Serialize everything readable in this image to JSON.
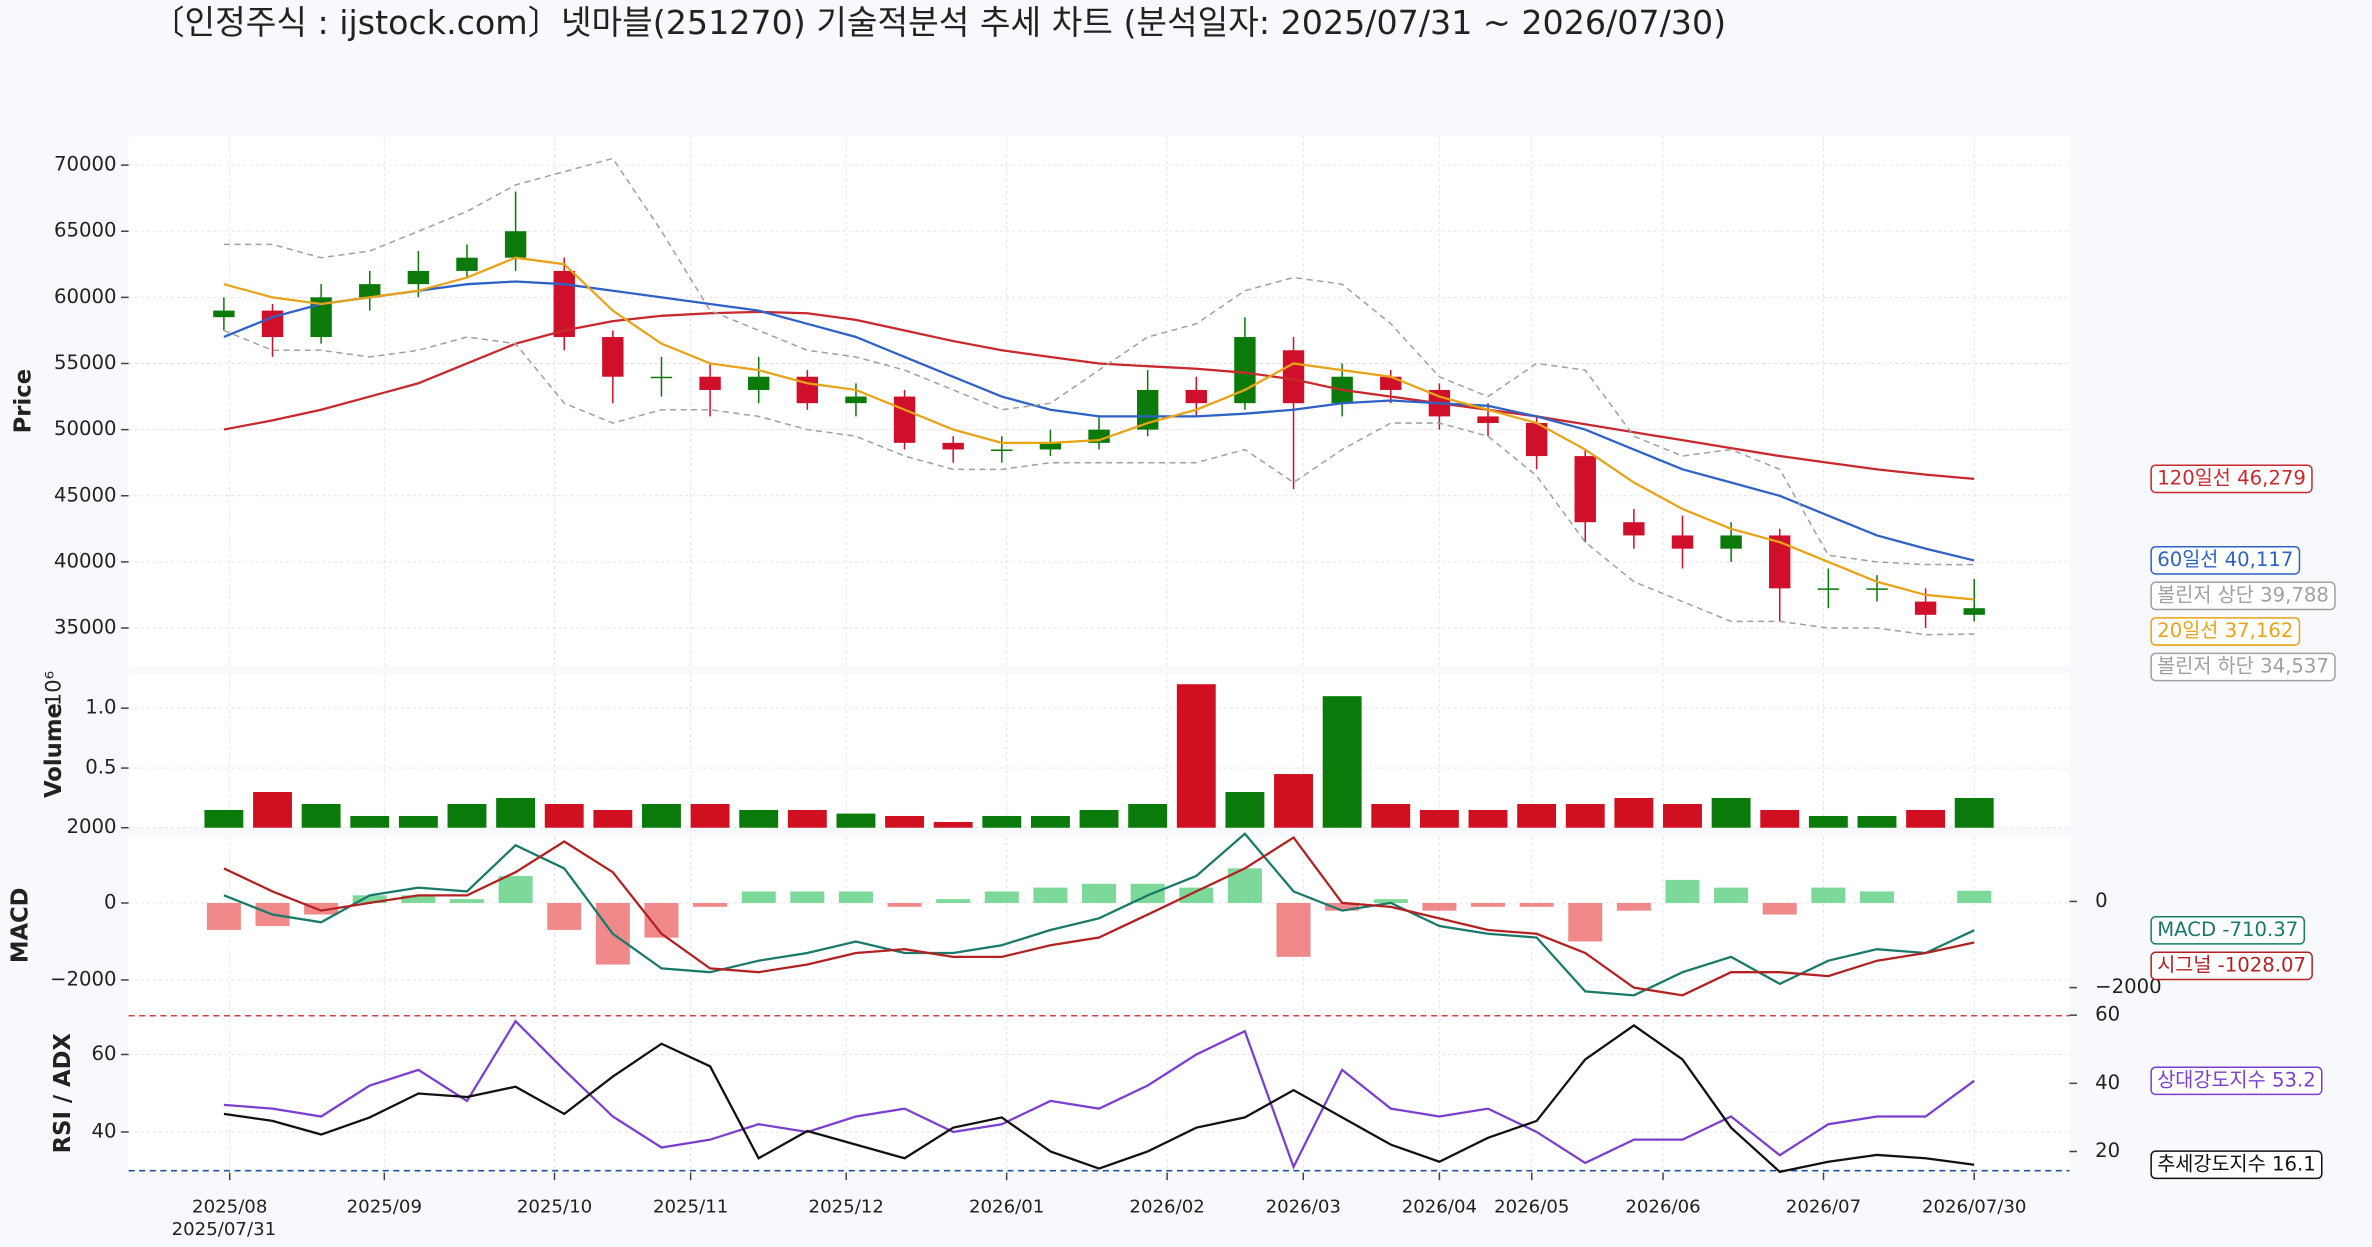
{
  "title": "〔인정주식 : ijstock.com〕넷마블(251270) 기술적분석 추세 차트 (분석일자: 2025/07/31 ~ 2026/07/30)",
  "chart_data": [
    {
      "type": "candlestick",
      "ylabel": "Price",
      "ylim": [
        32140,
        72170
      ],
      "yticks": [
        35000,
        40000,
        45000,
        50000,
        55000,
        60000,
        65000,
        70000
      ],
      "grid": true,
      "up_color": "#0b7a0b",
      "down_color": "#d0102a",
      "open": [
        58500,
        59000,
        57000,
        60000,
        61000,
        62000,
        63000,
        62000,
        57000,
        54000,
        54000,
        53000,
        54000,
        52000,
        52500,
        49000,
        48500,
        48500,
        49000,
        50000,
        53000,
        52000,
        56000,
        52000,
        54000,
        53000,
        51000,
        50500,
        48000,
        43000,
        42000,
        41000,
        42000,
        38000,
        38000,
        37000,
        36000
      ],
      "high": [
        60000,
        59500,
        61000,
        62000,
        63500,
        64000,
        68000,
        63000,
        57500,
        55500,
        55000,
        55500,
        54500,
        53500,
        53000,
        49500,
        49500,
        50000,
        51000,
        54500,
        54000,
        58500,
        57000,
        55000,
        54500,
        53500,
        52000,
        51000,
        48500,
        44000,
        43500,
        43000,
        42500,
        39500,
        39000,
        38000,
        38700
      ],
      "low": [
        57500,
        55500,
        56500,
        59000,
        60000,
        61500,
        62000,
        56000,
        52000,
        52500,
        51000,
        52000,
        51500,
        51000,
        48500,
        47500,
        47500,
        48000,
        48500,
        49500,
        51000,
        51500,
        45500,
        51000,
        52000,
        50000,
        49500,
        47000,
        41500,
        41000,
        39500,
        40000,
        35500,
        36500,
        37000,
        35000,
        35500
      ],
      "close": [
        59000,
        57000,
        60000,
        61000,
        62000,
        63000,
        65000,
        57000,
        54000,
        54000,
        53000,
        54000,
        52000,
        52500,
        49000,
        48500,
        48500,
        49000,
        50000,
        53000,
        52000,
        57000,
        52000,
        54000,
        53000,
        51000,
        50500,
        48000,
        43000,
        42000,
        41000,
        42000,
        38000,
        38000,
        38000,
        36000,
        36500
      ],
      "series": [
        {
          "name": "120일선 46,279",
          "color": "#c8282e",
          "values": [
            50000,
            50700,
            51500,
            52500,
            53500,
            55000,
            56500,
            57500,
            58200,
            58600,
            58800,
            58900,
            58800,
            58300,
            57500,
            56700,
            56000,
            55500,
            55000,
            54800,
            54600,
            54300,
            53800,
            53000,
            52500,
            52000,
            51500,
            51000,
            50400,
            49800,
            49200,
            48600,
            48000,
            47500,
            47000,
            46600,
            46279
          ]
        },
        {
          "name": "60일선 40,117",
          "color": "#2f62c6",
          "values": [
            57000,
            58500,
            59500,
            60000,
            60500,
            61000,
            61200,
            61000,
            60500,
            60000,
            59500,
            59000,
            58000,
            57000,
            55500,
            54000,
            52500,
            51500,
            51000,
            51000,
            51000,
            51200,
            51500,
            52000,
            52200,
            52000,
            51800,
            51000,
            50000,
            48500,
            47000,
            46000,
            45000,
            43500,
            42000,
            41000,
            40117
          ]
        },
        {
          "name": "볼린저 상단 39,788",
          "color": "#a0a0a0",
          "dash": true,
          "values": [
            64000,
            64000,
            63000,
            63500,
            65000,
            66500,
            68500,
            69500,
            70500,
            65000,
            59000,
            57500,
            56000,
            55500,
            54500,
            53000,
            51500,
            52000,
            54500,
            57000,
            58000,
            60500,
            61500,
            61000,
            58000,
            54000,
            52500,
            55000,
            54500,
            49500,
            48000,
            48500,
            47000,
            40500,
            40000,
            39800,
            39788
          ]
        },
        {
          "name": "20일선 37,162",
          "color": "#e8a317",
          "values": [
            61000,
            60000,
            59500,
            60000,
            60500,
            61500,
            63000,
            62500,
            59000,
            56500,
            55000,
            54500,
            53500,
            53000,
            51500,
            50000,
            49000,
            49000,
            49200,
            50500,
            51500,
            53000,
            55000,
            54500,
            54000,
            52500,
            51500,
            50500,
            48500,
            46000,
            44000,
            42500,
            41500,
            40000,
            38500,
            37500,
            37162
          ]
        },
        {
          "name": "볼린저 하단 34,537",
          "color": "#a0a0a0",
          "dash": true,
          "values": [
            57500,
            56000,
            56000,
            55500,
            56000,
            57000,
            56500,
            52000,
            50500,
            51500,
            51500,
            51000,
            50000,
            49500,
            48000,
            47000,
            47000,
            47500,
            47500,
            47500,
            47500,
            48500,
            46000,
            48500,
            50500,
            50500,
            49500,
            46500,
            41500,
            38500,
            37000,
            35500,
            35500,
            35000,
            35000,
            34500,
            34537
          ]
        }
      ]
    },
    {
      "type": "bar",
      "ylabel": "Volume",
      "offset_text": "10⁶",
      "ylim": [
        0.002,
        1.29
      ],
      "yticks": [
        {
          "value": 0.002,
          "label": "2000"
        },
        0.5,
        {
          "value": 1,
          "label": "1.0"
        }
      ],
      "grid": true,
      "up_color": "#0a7a0a",
      "down_color": "#d01020",
      "values": [
        0.15,
        0.3,
        0.2,
        0.1,
        0.1,
        0.2,
        0.25,
        0.2,
        0.15,
        0.2,
        0.2,
        0.15,
        0.15,
        0.12,
        0.1,
        0.05,
        0.1,
        0.1,
        0.15,
        0.2,
        1.2,
        0.3,
        0.45,
        1.1,
        0.2,
        0.15,
        0.15,
        0.2,
        0.2,
        0.25,
        0.2,
        0.25,
        0.15,
        0.1,
        0.1,
        0.15,
        0.25
      ]
    },
    {
      "type": "macd",
      "ylabel": "MACD",
      "ylim": [
        -2880,
        1720
      ],
      "yticks": [
        {
          "value": -2000,
          "label": "−2000"
        },
        0
      ],
      "y2lim": [
        -2607,
        1500
      ],
      "y2ticks": [
        {
          "value": -2000,
          "label": "−2000"
        },
        0
      ],
      "grid": true,
      "histogram": {
        "up_color": "#7dd99a",
        "down_color": "#f08a8a",
        "values": [
          -700,
          -600,
          -300,
          200,
          200,
          100,
          700,
          -700,
          -1600,
          -900,
          -100,
          300,
          300,
          300,
          -100,
          100,
          300,
          400,
          500,
          500,
          400,
          900,
          -1400,
          -200,
          100,
          -200,
          -100,
          -100,
          -1000,
          -200,
          600,
          400,
          -300,
          400,
          300,
          0,
          317.7
        ]
      },
      "series": [
        {
          "name": "MACD -710.37",
          "color": "#1a7a6a",
          "values": [
            200,
            -300,
            -500,
            200,
            400,
            300,
            1500,
            900,
            -800,
            -1700,
            -1800,
            -1500,
            -1300,
            -1000,
            -1300,
            -1300,
            -1100,
            -700,
            -400,
            200,
            700,
            1800,
            300,
            -200,
            0,
            -600,
            -800,
            -900,
            -2300,
            -2400,
            -1800,
            -1400,
            -2100,
            -1500,
            -1200,
            -1300,
            -710.37
          ]
        },
        {
          "name": "시그널 -1028.07",
          "color": "#b22222",
          "values": [
            900,
            300,
            -200,
            0,
            200,
            200,
            800,
            1600,
            800,
            -800,
            -1700,
            -1800,
            -1600,
            -1300,
            -1200,
            -1400,
            -1400,
            -1100,
            -900,
            -300,
            300,
            900,
            1700,
            0,
            -100,
            -400,
            -700,
            -800,
            -1300,
            -2200,
            -2400,
            -1800,
            -1800,
            -1900,
            -1500,
            -1300,
            -1028.07
          ]
        }
      ]
    },
    {
      "type": "line",
      "ylabel": "RSI / ADX",
      "ylim": [
        29.5,
        70.5
      ],
      "yticks": [
        40,
        60
      ],
      "y2lim": [
        13.8,
        60.4
      ],
      "y2ticks": [
        20,
        40,
        60
      ],
      "grid": true,
      "reference_lines": [
        {
          "value": 70,
          "color": "#d04040"
        },
        {
          "value": 30,
          "color": "#2050a0"
        }
      ],
      "xticks": [
        {
          "value": 0.12,
          "label": "2025/08"
        },
        {
          "value": 3.3,
          "label": "2025/09"
        },
        {
          "value": 6.8,
          "label": "2025/10"
        },
        {
          "value": 9.6,
          "label": "2025/11"
        },
        {
          "value": 12.8,
          "label": "2025/12"
        },
        {
          "value": 16.1,
          "label": "2026/01"
        },
        {
          "value": 19.4,
          "label": "2026/02"
        },
        {
          "value": 22.2,
          "label": "2026/03"
        },
        {
          "value": 25,
          "label": "2026/04"
        },
        {
          "value": 26.9,
          "label": "2026/05"
        },
        {
          "value": 29.6,
          "label": "2026/06"
        },
        {
          "value": 32.9,
          "label": "2026/07"
        },
        {
          "value": 36,
          "label": "2026/07/30"
        }
      ],
      "start_label": {
        "value": 0,
        "label": "2025/07/31"
      },
      "series": [
        {
          "name": "상대강도지수 53.2",
          "color": "#7b3fd0",
          "values": [
            47,
            46,
            44,
            52,
            56,
            48,
            68.6,
            56,
            44,
            36,
            38,
            42,
            40,
            44,
            46,
            40,
            42,
            48,
            46,
            52,
            60,
            66,
            31,
            56,
            46,
            44,
            46,
            40,
            32,
            38,
            38,
            44,
            34,
            42,
            44,
            44,
            53.2
          ]
        },
        {
          "name": "추세강도지수 16.1",
          "color": "#111111",
          "axis": "y2",
          "box": "#111111",
          "values": [
            31,
            29,
            25,
            30,
            37,
            36,
            39,
            31,
            42,
            51.6,
            45,
            18,
            26,
            22,
            18,
            27,
            30,
            20,
            15,
            20,
            27,
            30,
            38,
            30,
            22,
            17,
            24,
            29,
            47,
            57,
            47,
            27,
            14,
            17,
            19,
            18,
            16.1
          ]
        }
      ]
    }
  ]
}
